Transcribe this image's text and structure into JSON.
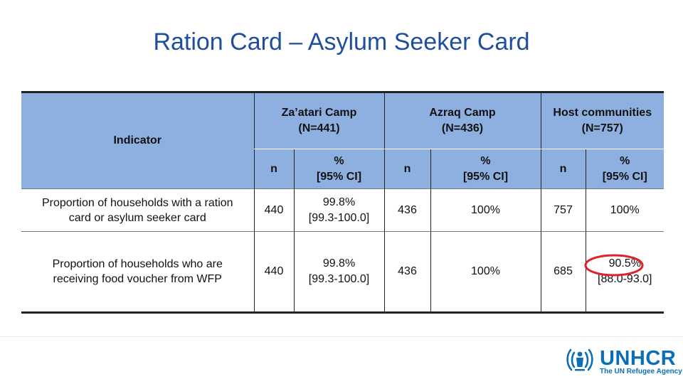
{
  "title": "Ration Card – Asylum Seeker Card",
  "table": {
    "indicator_header": "Indicator",
    "groups": [
      {
        "name": "Za’atari Camp",
        "n_label": "(N=441)"
      },
      {
        "name": "Azraq Camp",
        "n_label": "(N=436)"
      },
      {
        "name": "Host communities",
        "n_label": "(N=757)"
      }
    ],
    "sub_headers": {
      "n": "n",
      "pct": "%",
      "ci": "[95% CI]"
    },
    "rows": [
      {
        "indicator_line1": "Proportion of households with a ration",
        "indicator_line2": "card or asylum seeker card",
        "cells": [
          {
            "n": "440",
            "pct": "99.8%",
            "ci": "[99.3-100.0]"
          },
          {
            "n": "436",
            "pct": "100%",
            "ci": ""
          },
          {
            "n": "757",
            "pct": "100%",
            "ci": ""
          }
        ]
      },
      {
        "indicator_line1": "Proportion of households who are",
        "indicator_line2": "receiving food voucher from WFP",
        "cells": [
          {
            "n": "440",
            "pct": "99.8%",
            "ci": "[99.3-100.0]"
          },
          {
            "n": "436",
            "pct": "100%",
            "ci": ""
          },
          {
            "n": "685",
            "pct": "90.5%",
            "ci": "[88.0-93.0]"
          }
        ]
      }
    ]
  },
  "highlight": {
    "color": "#e0202a",
    "target": "90.5%"
  },
  "logo": {
    "name": "UNHCR",
    "tagline": "The UN Refugee Agency",
    "icon": "unhcr-emblem-icon",
    "color": "#0a6fb7"
  }
}
